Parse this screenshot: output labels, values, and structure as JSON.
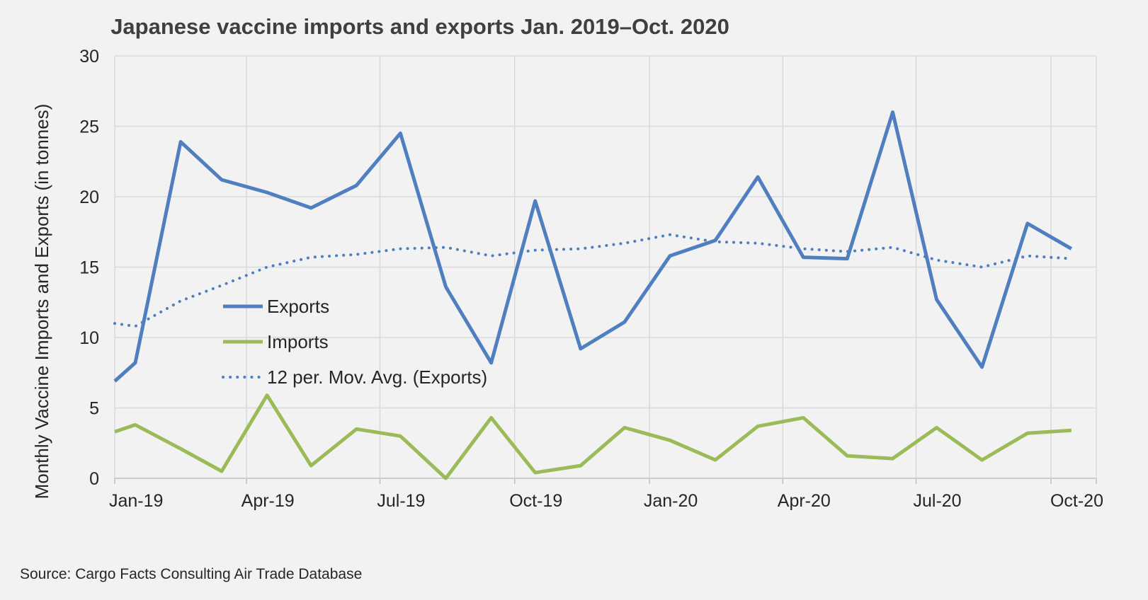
{
  "chart_data": {
    "type": "line",
    "title": "Japanese vaccine imports and exports Jan. 2019–Oct. 2020",
    "ylabel": "Monthly Vaccine Imports and Exports (in tonnes)",
    "xlabel": "",
    "ylim": [
      0,
      30
    ],
    "y_ticks": [
      "0",
      "5",
      "10",
      "15",
      "20",
      "25",
      "30"
    ],
    "x_ticks": [
      "Jan-19",
      "Apr-19",
      "Jul-19",
      "Oct-19",
      "Jan-20",
      "Apr-20",
      "Jul-20",
      "Oct-20"
    ],
    "x_dates": [
      "2019-01-01",
      "2019-04-01",
      "2019-07-01",
      "2019-10-01",
      "2020-01-01",
      "2020-04-01",
      "2020-07-01",
      "2020-10-01",
      "2020-11-01"
    ],
    "grid": true,
    "legend": "center-left",
    "series": [
      {
        "name": "Exports",
        "color": "#4f7fbf",
        "style": "solid",
        "points": [
          [
            "2019-01-01",
            6.9
          ],
          [
            "2019-01-15",
            8.2
          ],
          [
            "2019-02-15",
            23.9
          ],
          [
            "2019-03-15",
            21.2
          ],
          [
            "2019-04-15",
            20.3
          ],
          [
            "2019-05-15",
            19.2
          ],
          [
            "2019-06-15",
            20.8
          ],
          [
            "2019-07-15",
            24.5
          ],
          [
            "2019-08-15",
            13.6
          ],
          [
            "2019-09-15",
            8.2
          ],
          [
            "2019-10-15",
            19.7
          ],
          [
            "2019-11-15",
            9.2
          ],
          [
            "2019-12-15",
            11.1
          ],
          [
            "2020-01-15",
            15.8
          ],
          [
            "2020-02-15",
            16.9
          ],
          [
            "2020-03-15",
            21.4
          ],
          [
            "2020-04-15",
            15.7
          ],
          [
            "2020-05-15",
            15.6
          ],
          [
            "2020-06-15",
            26.0
          ],
          [
            "2020-07-15",
            12.7
          ],
          [
            "2020-08-15",
            7.9
          ],
          [
            "2020-09-15",
            18.1
          ],
          [
            "2020-10-15",
            16.3
          ]
        ]
      },
      {
        "name": "Imports",
        "color": "#9bbb59",
        "style": "solid",
        "points": [
          [
            "2019-01-01",
            3.3
          ],
          [
            "2019-01-15",
            3.8
          ],
          [
            "2019-02-15",
            2.1
          ],
          [
            "2019-03-15",
            0.5
          ],
          [
            "2019-04-15",
            5.9
          ],
          [
            "2019-05-15",
            0.9
          ],
          [
            "2019-06-15",
            3.5
          ],
          [
            "2019-07-15",
            3.0
          ],
          [
            "2019-08-15",
            0.0
          ],
          [
            "2019-09-15",
            4.3
          ],
          [
            "2019-10-15",
            0.4
          ],
          [
            "2019-11-15",
            0.9
          ],
          [
            "2019-12-15",
            3.6
          ],
          [
            "2020-01-15",
            2.7
          ],
          [
            "2020-02-15",
            1.3
          ],
          [
            "2020-03-15",
            3.7
          ],
          [
            "2020-04-15",
            4.3
          ],
          [
            "2020-05-15",
            1.6
          ],
          [
            "2020-06-15",
            1.4
          ],
          [
            "2020-07-15",
            3.6
          ],
          [
            "2020-08-15",
            1.3
          ],
          [
            "2020-09-15",
            3.2
          ],
          [
            "2020-10-15",
            3.4
          ]
        ]
      },
      {
        "name": "12 per. Mov. Avg. (Exports)",
        "color": "#4f7fbf",
        "style": "dotted",
        "points": [
          [
            "2019-01-01",
            11.0
          ],
          [
            "2019-01-15",
            10.8
          ],
          [
            "2019-02-15",
            12.6
          ],
          [
            "2019-03-15",
            13.7
          ],
          [
            "2019-04-15",
            15.0
          ],
          [
            "2019-05-15",
            15.7
          ],
          [
            "2019-06-15",
            15.9
          ],
          [
            "2019-07-15",
            16.3
          ],
          [
            "2019-08-15",
            16.4
          ],
          [
            "2019-09-15",
            15.8
          ],
          [
            "2019-10-15",
            16.2
          ],
          [
            "2019-11-15",
            16.3
          ],
          [
            "2019-12-15",
            16.7
          ],
          [
            "2020-01-15",
            17.3
          ],
          [
            "2020-02-15",
            16.8
          ],
          [
            "2020-03-15",
            16.7
          ],
          [
            "2020-04-15",
            16.3
          ],
          [
            "2020-05-15",
            16.1
          ],
          [
            "2020-06-15",
            16.4
          ],
          [
            "2020-07-15",
            15.5
          ],
          [
            "2020-08-15",
            15.0
          ],
          [
            "2020-09-15",
            15.8
          ],
          [
            "2020-10-15",
            15.6
          ]
        ]
      }
    ]
  },
  "source": "Source:  Cargo Facts Consulting Air Trade Database"
}
